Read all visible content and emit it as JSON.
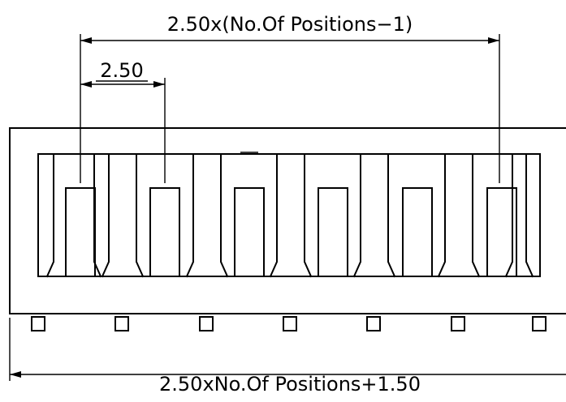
{
  "dimensions": {
    "top": "2.50x(No.Of Positions−1)",
    "pitch": "2.50",
    "bottom": "2.50xNo.Of Positions+1.50"
  }
}
